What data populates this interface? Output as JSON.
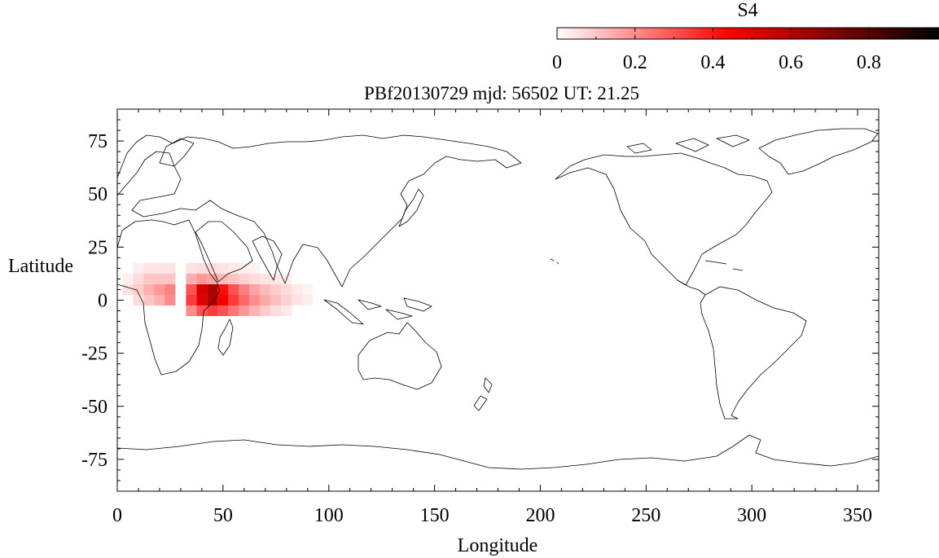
{
  "title": "PBf20130729  mjd: 56502  UT:  21.25",
  "colorbar": {
    "label": "S4",
    "range": [
      0,
      0.98
    ],
    "ticks": [
      "0",
      "0.2",
      "0.4",
      "0.6",
      "0.8"
    ],
    "tick_values": [
      0,
      0.2,
      0.4,
      0.6,
      0.8
    ],
    "colors": [
      "#ffffff",
      "#ff0000",
      "#000000"
    ]
  },
  "x_axis": {
    "label": "Longitude",
    "range": [
      0,
      360
    ],
    "ticks": [
      "0",
      "50",
      "100",
      "150",
      "200",
      "250",
      "300",
      "350"
    ],
    "tick_values": [
      0,
      50,
      100,
      150,
      200,
      250,
      300,
      350
    ]
  },
  "y_axis": {
    "label": "Latitude",
    "range": [
      -90,
      90
    ],
    "ticks": [
      "75",
      "50",
      "25",
      "0",
      "-25",
      "-50",
      "-75"
    ],
    "tick_values": [
      75,
      50,
      25,
      0,
      -25,
      -50,
      -75
    ]
  },
  "chart_data": {
    "type": "heatmap",
    "title": "PBf20130729  mjd: 56502  UT:  21.25",
    "xlabel": "Longitude",
    "ylabel": "Latitude",
    "xlim": [
      0,
      360
    ],
    "ylim": [
      -90,
      90
    ],
    "value_label": "S4",
    "value_range": [
      0,
      0.98
    ],
    "cell_size": [
      5,
      5
    ],
    "cells": [
      {
        "lon": 10,
        "lat": 15,
        "s4": 0.03
      },
      {
        "lon": 15,
        "lat": 15,
        "s4": 0.05
      },
      {
        "lon": 20,
        "lat": 15,
        "s4": 0.05
      },
      {
        "lon": 25,
        "lat": 15,
        "s4": 0.05
      },
      {
        "lon": 35,
        "lat": 15,
        "s4": 0.05
      },
      {
        "lon": 40,
        "lat": 15,
        "s4": 0.06
      },
      {
        "lon": 45,
        "lat": 15,
        "s4": 0.06
      },
      {
        "lon": 50,
        "lat": 15,
        "s4": 0.05
      },
      {
        "lon": 55,
        "lat": 15,
        "s4": 0.04
      },
      {
        "lon": 60,
        "lat": 15,
        "s4": 0.03
      },
      {
        "lon": 65,
        "lat": 15,
        "s4": 0.02
      },
      {
        "lon": 5,
        "lat": 10,
        "s4": 0.03
      },
      {
        "lon": 10,
        "lat": 10,
        "s4": 0.06
      },
      {
        "lon": 15,
        "lat": 10,
        "s4": 0.1
      },
      {
        "lon": 20,
        "lat": 10,
        "s4": 0.1
      },
      {
        "lon": 25,
        "lat": 10,
        "s4": 0.1
      },
      {
        "lon": 35,
        "lat": 10,
        "s4": 0.14
      },
      {
        "lon": 40,
        "lat": 10,
        "s4": 0.18
      },
      {
        "lon": 45,
        "lat": 10,
        "s4": 0.16
      },
      {
        "lon": 50,
        "lat": 10,
        "s4": 0.12
      },
      {
        "lon": 55,
        "lat": 10,
        "s4": 0.1
      },
      {
        "lon": 60,
        "lat": 10,
        "s4": 0.08
      },
      {
        "lon": 65,
        "lat": 10,
        "s4": 0.06
      },
      {
        "lon": 70,
        "lat": 10,
        "s4": 0.05
      },
      {
        "lon": 75,
        "lat": 10,
        "s4": 0.04
      },
      {
        "lon": 80,
        "lat": 10,
        "s4": 0.03
      },
      {
        "lon": 5,
        "lat": 5,
        "s4": 0.05
      },
      {
        "lon": 10,
        "lat": 5,
        "s4": 0.09
      },
      {
        "lon": 15,
        "lat": 5,
        "s4": 0.14
      },
      {
        "lon": 20,
        "lat": 5,
        "s4": 0.18
      },
      {
        "lon": 25,
        "lat": 5,
        "s4": 0.22
      },
      {
        "lon": 35,
        "lat": 5,
        "s4": 0.3
      },
      {
        "lon": 40,
        "lat": 5,
        "s4": 0.52
      },
      {
        "lon": 45,
        "lat": 5,
        "s4": 0.62
      },
      {
        "lon": 50,
        "lat": 5,
        "s4": 0.42
      },
      {
        "lon": 55,
        "lat": 5,
        "s4": 0.3
      },
      {
        "lon": 60,
        "lat": 5,
        "s4": 0.22
      },
      {
        "lon": 65,
        "lat": 5,
        "s4": 0.16
      },
      {
        "lon": 70,
        "lat": 5,
        "s4": 0.12
      },
      {
        "lon": 75,
        "lat": 5,
        "s4": 0.09
      },
      {
        "lon": 80,
        "lat": 5,
        "s4": 0.06
      },
      {
        "lon": 85,
        "lat": 5,
        "s4": 0.04
      },
      {
        "lon": 90,
        "lat": 5,
        "s4": 0.02
      },
      {
        "lon": 10,
        "lat": 0,
        "s4": 0.06
      },
      {
        "lon": 15,
        "lat": 0,
        "s4": 0.1
      },
      {
        "lon": 20,
        "lat": 0,
        "s4": 0.14
      },
      {
        "lon": 25,
        "lat": 0,
        "s4": 0.2
      },
      {
        "lon": 35,
        "lat": 0,
        "s4": 0.34
      },
      {
        "lon": 40,
        "lat": 0,
        "s4": 0.5
      },
      {
        "lon": 45,
        "lat": 0,
        "s4": 0.6
      },
      {
        "lon": 50,
        "lat": 0,
        "s4": 0.46
      },
      {
        "lon": 55,
        "lat": 0,
        "s4": 0.34
      },
      {
        "lon": 60,
        "lat": 0,
        "s4": 0.26
      },
      {
        "lon": 65,
        "lat": 0,
        "s4": 0.2
      },
      {
        "lon": 70,
        "lat": 0,
        "s4": 0.15
      },
      {
        "lon": 75,
        "lat": 0,
        "s4": 0.11
      },
      {
        "lon": 80,
        "lat": 0,
        "s4": 0.08
      },
      {
        "lon": 85,
        "lat": 0,
        "s4": 0.05
      },
      {
        "lon": 90,
        "lat": 0,
        "s4": 0.03
      },
      {
        "lon": 35,
        "lat": -5,
        "s4": 0.2
      },
      {
        "lon": 40,
        "lat": -5,
        "s4": 0.3
      },
      {
        "lon": 45,
        "lat": -5,
        "s4": 0.34
      },
      {
        "lon": 50,
        "lat": -5,
        "s4": 0.3
      },
      {
        "lon": 55,
        "lat": -5,
        "s4": 0.24
      },
      {
        "lon": 60,
        "lat": -5,
        "s4": 0.18
      },
      {
        "lon": 65,
        "lat": -5,
        "s4": 0.13
      },
      {
        "lon": 70,
        "lat": -5,
        "s4": 0.09
      },
      {
        "lon": 75,
        "lat": -5,
        "s4": 0.06
      },
      {
        "lon": 80,
        "lat": -5,
        "s4": 0.04
      }
    ]
  }
}
